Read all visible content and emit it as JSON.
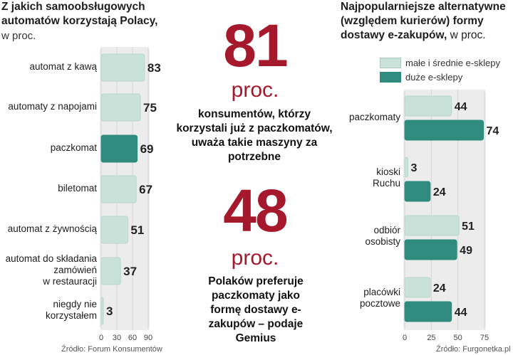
{
  "left_title": "Z jakich samoobsługowych automatów korzystają Polacy,",
  "left_subtitle": "w proc.",
  "left_source": "Źródło: Forum Konsumentów",
  "stat1_value": "81",
  "stat1_unit": "proc.",
  "stat1_text": "konsumentów, którzy korzystali już z paczkomatów, uważa takie maszyny za potrzebne",
  "stat2_value": "48",
  "stat2_unit": "proc.",
  "stat2_text": "Polaków preferuje paczkomaty jako formę dostawy e-zakupów – podaje Gemius",
  "right_title_bold": "Najpopularniejsze alternatywne (względem kurierów) formy dostawy e-zakupów,",
  "right_title_normal": "w proc.",
  "right_source": "Źródło: Furgonetka.pl",
  "colors": {
    "light_bar": "#c8e2d9",
    "dark_bar": "#2e8b7d",
    "panel": "#ececec",
    "accent_red": "#a6182b"
  },
  "chart_data": [
    {
      "type": "bar",
      "orientation": "horizontal",
      "title": "Z jakich samoobsługowych automatów korzystają Polacy, w proc.",
      "categories": [
        "automat z kawą",
        "automaty z napojami",
        "paczkomat",
        "biletomat",
        "automat z żywnością",
        "automat do składania zamówień w restauracji",
        "niegdy nie korzystałem"
      ],
      "values": [
        83,
        75,
        69,
        67,
        51,
        37,
        3
      ],
      "highlight_index": 2,
      "xlim": [
        0,
        90
      ],
      "xticks": [
        "0",
        "30",
        "60",
        "90"
      ]
    },
    {
      "type": "bar",
      "orientation": "horizontal",
      "title": "Najpopularniejsze alternatywne (względem kurierów) formy dostawy e-zakupów, w proc.",
      "categories": [
        "paczkomaty",
        "kioski Ruchu",
        "odbiór osobisty",
        "placówki pocztowe"
      ],
      "series": [
        {
          "name": "małe i średnie e-sklepy",
          "values": [
            44,
            3,
            51,
            24
          ]
        },
        {
          "name": "duże e-sklepy",
          "values": [
            74,
            24,
            49,
            44
          ]
        }
      ],
      "xlim": [
        0,
        75
      ],
      "xticks": [
        "0",
        "25",
        "50",
        "75"
      ],
      "legend_position": "top"
    }
  ]
}
